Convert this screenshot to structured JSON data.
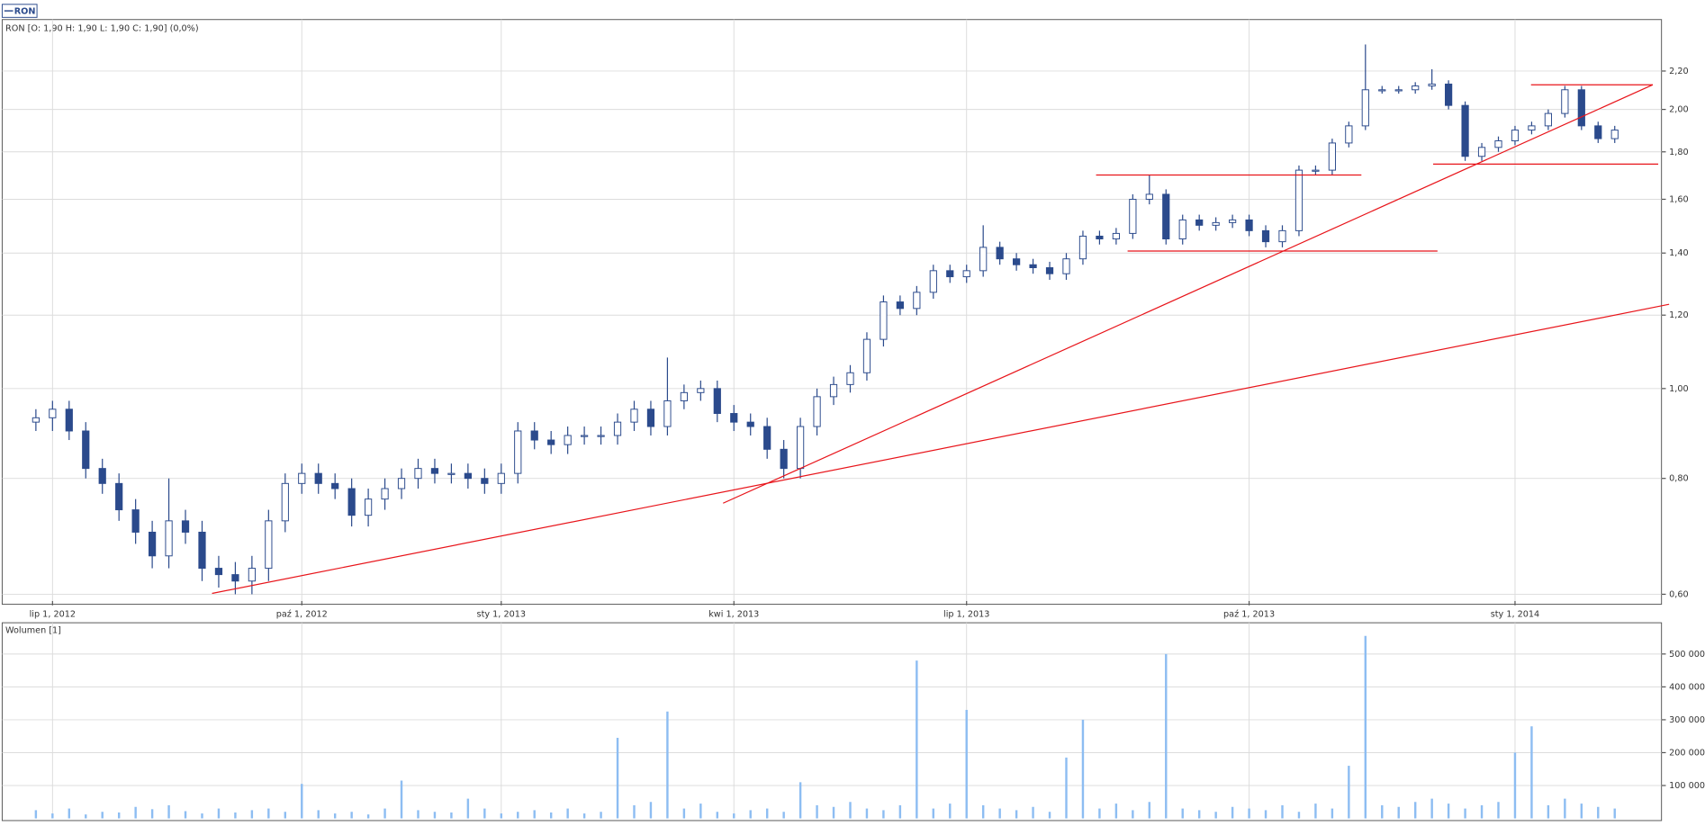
{
  "chart_data": [
    {
      "type": "candlestick",
      "title": "RON [O: 1,90  H: 1,90  L: 1,90  C: 1,90] (0,0%)",
      "categories": [
        null,
        "lip 1, 2012",
        null,
        null,
        null,
        null,
        null,
        null,
        null,
        null,
        null,
        null,
        null,
        null,
        null,
        null,
        "paź 1, 2012",
        null,
        null,
        null,
        null,
        null,
        null,
        null,
        null,
        null,
        null,
        null,
        "sty 1, 2013",
        null,
        null,
        null,
        null,
        null,
        null,
        null,
        null,
        null,
        null,
        null,
        null,
        null,
        "kwi 1, 2013",
        null,
        null,
        null,
        null,
        null,
        null,
        null,
        null,
        null,
        null,
        null,
        null,
        null,
        "lip 1, 2013",
        null,
        null,
        null,
        null,
        null,
        null,
        null,
        null,
        null,
        null,
        null,
        null,
        null,
        null,
        null,
        null,
        "paź 1, 2013",
        null,
        null,
        null,
        null,
        null,
        null,
        null,
        null,
        null,
        null,
        null,
        null,
        null,
        null,
        null,
        "sty 1, 2014",
        null,
        null,
        null,
        null,
        null,
        null
      ],
      "series": [
        {
          "name": "RON",
          "color": "#2b4a8c",
          "open": [
            0.92,
            0.93,
            0.95,
            0.9,
            0.82,
            0.79,
            0.74,
            0.7,
            0.66,
            0.72,
            0.7,
            0.64,
            0.63,
            0.62,
            0.64,
            0.72,
            0.79,
            0.81,
            0.79,
            0.78,
            0.73,
            0.76,
            0.78,
            0.8,
            0.82,
            0.81,
            0.81,
            0.8,
            0.79,
            0.81,
            0.9,
            0.88,
            0.87,
            0.89,
            0.89,
            0.89,
            0.92,
            0.95,
            0.91,
            0.97,
            0.99,
            1.0,
            0.94,
            0.92,
            0.91,
            0.86,
            0.82,
            0.91,
            0.98,
            1.01,
            1.04,
            1.13,
            1.24,
            1.22,
            1.27,
            1.34,
            1.32,
            1.34,
            1.42,
            1.38,
            1.36,
            1.35,
            1.33,
            1.38,
            1.46,
            1.45,
            1.47,
            1.6,
            1.62,
            1.45,
            1.52,
            1.5,
            1.51,
            1.52,
            1.48,
            1.44,
            1.48,
            1.72,
            1.72,
            1.84,
            1.92,
            2.1,
            2.1,
            2.1,
            2.12,
            2.13,
            2.02,
            1.78,
            1.82,
            1.85,
            1.9,
            1.92,
            1.98,
            2.1,
            1.92,
            1.86
          ],
          "high": [
            0.95,
            0.97,
            0.97,
            0.92,
            0.84,
            0.81,
            0.76,
            0.72,
            0.8,
            0.74,
            0.72,
            0.66,
            0.65,
            0.66,
            0.74,
            0.81,
            0.83,
            0.83,
            0.81,
            0.8,
            0.78,
            0.8,
            0.82,
            0.84,
            0.84,
            0.83,
            0.83,
            0.82,
            0.83,
            0.92,
            0.92,
            0.9,
            0.91,
            0.91,
            0.91,
            0.94,
            0.97,
            0.97,
            1.08,
            1.01,
            1.02,
            1.02,
            0.96,
            0.94,
            0.93,
            0.88,
            0.93,
            1.0,
            1.03,
            1.06,
            1.15,
            1.26,
            1.26,
            1.29,
            1.36,
            1.36,
            1.36,
            1.5,
            1.44,
            1.4,
            1.38,
            1.37,
            1.4,
            1.48,
            1.48,
            1.49,
            1.62,
            1.7,
            1.64,
            1.54,
            1.54,
            1.53,
            1.54,
            1.54,
            1.5,
            1.5,
            1.74,
            1.74,
            1.86,
            1.94,
            2.35,
            2.12,
            2.12,
            2.14,
            2.21,
            2.15,
            2.04,
            1.84,
            1.87,
            1.92,
            1.94,
            2.0,
            2.12,
            2.12,
            1.94,
            1.92
          ],
          "low": [
            0.9,
            0.9,
            0.88,
            0.8,
            0.77,
            0.72,
            0.68,
            0.64,
            0.64,
            0.68,
            0.62,
            0.61,
            0.6,
            0.6,
            0.62,
            0.7,
            0.77,
            0.77,
            0.76,
            0.71,
            0.71,
            0.74,
            0.76,
            0.78,
            0.79,
            0.79,
            0.78,
            0.77,
            0.77,
            0.79,
            0.86,
            0.85,
            0.85,
            0.87,
            0.87,
            0.87,
            0.9,
            0.89,
            0.89,
            0.95,
            0.97,
            0.92,
            0.9,
            0.89,
            0.84,
            0.8,
            0.8,
            0.89,
            0.96,
            0.99,
            1.02,
            1.11,
            1.2,
            1.2,
            1.25,
            1.3,
            1.3,
            1.32,
            1.36,
            1.34,
            1.33,
            1.31,
            1.31,
            1.36,
            1.43,
            1.43,
            1.45,
            1.58,
            1.43,
            1.43,
            1.48,
            1.48,
            1.49,
            1.46,
            1.42,
            1.42,
            1.46,
            1.7,
            1.7,
            1.82,
            1.9,
            2.08,
            2.08,
            2.08,
            2.1,
            2.0,
            1.76,
            1.76,
            1.8,
            1.83,
            1.88,
            1.9,
            1.96,
            1.9,
            1.84,
            1.84
          ],
          "close": [
            0.93,
            0.95,
            0.9,
            0.82,
            0.79,
            0.74,
            0.7,
            0.66,
            0.72,
            0.7,
            0.64,
            0.63,
            0.62,
            0.64,
            0.72,
            0.79,
            0.81,
            0.79,
            0.78,
            0.73,
            0.76,
            0.78,
            0.8,
            0.82,
            0.81,
            0.81,
            0.8,
            0.79,
            0.81,
            0.9,
            0.88,
            0.87,
            0.89,
            0.89,
            0.89,
            0.92,
            0.95,
            0.91,
            0.97,
            0.99,
            1.0,
            0.94,
            0.92,
            0.91,
            0.86,
            0.82,
            0.91,
            0.98,
            1.01,
            1.04,
            1.13,
            1.24,
            1.22,
            1.27,
            1.34,
            1.32,
            1.34,
            1.42,
            1.38,
            1.36,
            1.35,
            1.33,
            1.38,
            1.46,
            1.45,
            1.47,
            1.6,
            1.62,
            1.45,
            1.52,
            1.5,
            1.51,
            1.52,
            1.48,
            1.44,
            1.48,
            1.72,
            1.72,
            1.84,
            1.92,
            2.1,
            2.1,
            2.1,
            2.12,
            2.13,
            2.02,
            1.78,
            1.82,
            1.85,
            1.9,
            1.92,
            1.98,
            2.1,
            1.92,
            1.86,
            1.9
          ]
        }
      ],
      "ylim": [
        0.59,
        2.5
      ],
      "log_scale": true,
      "grid": true,
      "yticks": [
        {
          "value": 0.6,
          "label": "0,60"
        },
        {
          "value": 0.8,
          "label": "0,80"
        },
        {
          "value": 1.0,
          "label": "1,00"
        },
        {
          "value": 1.2,
          "label": "1,20"
        },
        {
          "value": 1.4,
          "label": "1,40"
        },
        {
          "value": 1.6,
          "label": "1,60"
        },
        {
          "value": 1.8,
          "label": "1,80"
        },
        {
          "value": 2.0,
          "label": "2,00"
        },
        {
          "value": 2.2,
          "label": "2,20"
        }
      ]
    },
    {
      "type": "bar",
      "title": "Wolumen [1]",
      "color": "#8dbdf2",
      "values": [
        25000,
        15000,
        30000,
        12000,
        20000,
        18000,
        35000,
        28000,
        40000,
        22000,
        15000,
        30000,
        18000,
        25000,
        30000,
        20000,
        105000,
        25000,
        15000,
        20000,
        12000,
        30000,
        115000,
        25000,
        20000,
        18000,
        60000,
        30000,
        15000,
        20000,
        25000,
        18000,
        30000,
        15000,
        20000,
        245000,
        40000,
        50000,
        325000,
        30000,
        45000,
        20000,
        15000,
        25000,
        30000,
        20000,
        110000,
        40000,
        35000,
        50000,
        30000,
        25000,
        40000,
        480000,
        30000,
        45000,
        330000,
        40000,
        30000,
        25000,
        35000,
        20000,
        185000,
        300000,
        30000,
        45000,
        25000,
        50000,
        500000,
        30000,
        25000,
        20000,
        35000,
        30000,
        25000,
        40000,
        20000,
        45000,
        30000,
        160000,
        555000,
        40000,
        35000,
        50000,
        60000,
        45000,
        30000,
        40000,
        50000,
        200000,
        280000,
        40000,
        60000,
        45000,
        35000,
        30000
      ],
      "ylim": [
        0,
        595000
      ],
      "grid": true,
      "yticks": [
        {
          "value": 100000,
          "label": "100 000"
        },
        {
          "value": 200000,
          "label": "200 000"
        },
        {
          "value": 300000,
          "label": "300 000"
        },
        {
          "value": 400000,
          "label": "400 000"
        },
        {
          "value": 500000,
          "label": "500 000"
        }
      ]
    }
  ]
}
